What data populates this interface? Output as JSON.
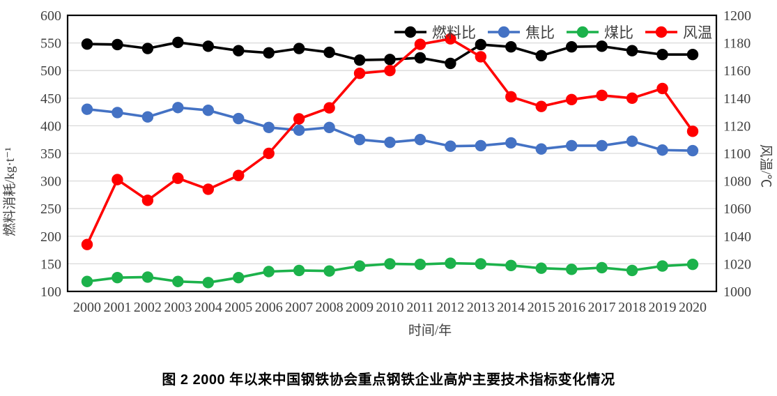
{
  "figure": {
    "caption": "图 2  2000 年以来中国钢铁协会重点钢铁企业高炉主要技术指标变化情况"
  },
  "chart_data": {
    "type": "line",
    "x": [
      2000,
      2001,
      2002,
      2003,
      2004,
      2005,
      2006,
      2007,
      2008,
      2009,
      2010,
      2011,
      2012,
      2013,
      2014,
      2015,
      2016,
      2017,
      2018,
      2019,
      2020
    ],
    "xlabel": "时间/年",
    "ylabel_left": "燃料消耗/kg·t⁻¹",
    "ylabel_right": "风温/℃",
    "ylim_left": [
      100,
      600
    ],
    "ytick_step_left": 50,
    "ylim_right": [
      1000,
      1200
    ],
    "ytick_step_right": 20,
    "grid": true,
    "legend_position": "top-inside",
    "series": [
      {
        "id": "fuel-ratio",
        "name": "燃料比",
        "axis": "left",
        "color": "#000000",
        "values": [
          548,
          547,
          540,
          551,
          544,
          536,
          532,
          540,
          533,
          519,
          520,
          523,
          513,
          547,
          543,
          527,
          543,
          544,
          536,
          529,
          529
        ]
      },
      {
        "id": "coke-ratio",
        "name": "焦比",
        "axis": "left",
        "color": "#4472c4",
        "values": [
          430,
          424,
          416,
          433,
          428,
          413,
          397,
          392,
          397,
          375,
          370,
          375,
          363,
          364,
          369,
          358,
          364,
          364,
          372,
          356,
          355
        ]
      },
      {
        "id": "coal-ratio",
        "name": "煤比",
        "axis": "left",
        "color": "#1cb24b",
        "values": [
          118,
          125,
          126,
          118,
          116,
          125,
          136,
          138,
          137,
          146,
          150,
          149,
          151,
          150,
          147,
          142,
          140,
          143,
          138,
          146,
          149
        ]
      },
      {
        "id": "blast-temperature",
        "name": "风温",
        "axis": "right",
        "color": "#ff0000",
        "values": [
          1034,
          1081,
          1066,
          1082,
          1074,
          1084,
          1100,
          1125,
          1133,
          1158,
          1160,
          1179,
          1183,
          1170,
          1141,
          1134,
          1139,
          1142,
          1140,
          1147,
          1116
        ]
      }
    ],
    "colors": {
      "gridline": "#d9d9d9",
      "axis_border": "#000000",
      "tick_text": "#3f3f3f",
      "axis_title_text": "#3f3f3f",
      "legend_text": "#3f3f3f"
    }
  }
}
